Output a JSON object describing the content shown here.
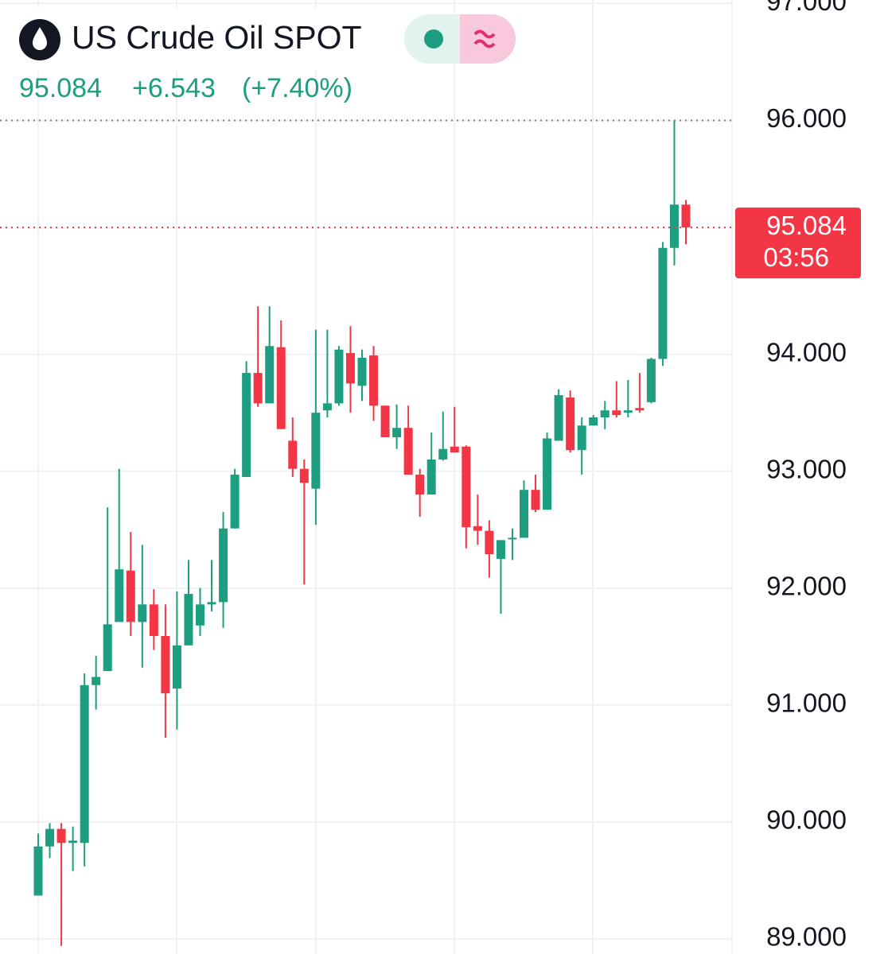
{
  "chart_data": {
    "type": "candlestick",
    "title": "US Crude Oil SPOT",
    "last_price": 95.084,
    "change": "+6.543",
    "change_pct": "(+7.40%)",
    "countdown": "03:56",
    "up_color": "#1e9e80",
    "down_color": "#f23645",
    "grid": true,
    "ylim": [
      88.87,
      97.03
    ],
    "yticks": [
      {
        "value": 89,
        "label": "89.000"
      },
      {
        "value": 90,
        "label": "90.000"
      },
      {
        "value": 91,
        "label": "91.000"
      },
      {
        "value": 92,
        "label": "92.000"
      },
      {
        "value": 93,
        "label": "93.000"
      },
      {
        "value": 94,
        "label": "94.000"
      },
      {
        "value": 96,
        "label": "96.000"
      },
      {
        "value": 97,
        "label": "97.000"
      }
    ],
    "open": [
      89.37,
      89.79,
      89.94,
      89.82,
      89.82,
      91.17,
      91.29,
      91.71,
      92.15,
      91.71,
      91.86,
      91.59,
      91.14,
      91.51,
      91.68,
      91.86,
      91.88,
      92.51,
      92.95,
      93.84,
      93.58,
      94.06,
      93.26,
      93.02,
      92.85,
      93.52,
      93.58,
      94.01,
      93.73,
      93.99,
      93.56,
      93.29,
      93.37,
      92.97,
      92.8,
      93.1,
      93.21,
      93.21,
      92.53,
      92.49,
      92.25,
      92.42,
      92.43,
      92.84,
      92.67,
      93.26,
      93.63,
      93.18,
      93.39,
      93.46,
      93.52,
      93.5,
      93.54,
      93.59,
      93.96,
      94.91,
      95.28
    ],
    "high": [
      89.9,
      89.99,
      89.99,
      89.96,
      91.27,
      91.42,
      92.69,
      93.02,
      92.48,
      92.37,
      91.99,
      91.86,
      91.97,
      92.24,
      92.0,
      92.24,
      92.65,
      93.02,
      93.94,
      94.41,
      94.41,
      94.29,
      93.46,
      93.1,
      94.21,
      94.21,
      94.07,
      94.24,
      94.04,
      94.07,
      93.56,
      93.57,
      93.56,
      93.02,
      93.33,
      93.51,
      93.55,
      93.22,
      92.8,
      92.58,
      92.41,
      92.51,
      92.92,
      92.97,
      93.33,
      93.7,
      93.69,
      93.46,
      93.48,
      93.6,
      93.77,
      93.78,
      93.84,
      93.97,
      94.96,
      96.0,
      95.32
    ],
    "low": [
      89.37,
      89.69,
      88.94,
      89.58,
      89.62,
      90.96,
      91.29,
      91.71,
      91.59,
      91.32,
      91.47,
      90.72,
      90.79,
      91.51,
      91.59,
      91.8,
      91.66,
      92.51,
      92.95,
      93.55,
      93.58,
      93.36,
      92.95,
      92.03,
      92.54,
      93.46,
      93.56,
      93.5,
      93.6,
      93.43,
      93.29,
      93.19,
      92.97,
      92.61,
      92.8,
      93.09,
      93.16,
      92.34,
      92.37,
      92.09,
      91.78,
      92.24,
      92.43,
      92.65,
      92.67,
      93.26,
      93.16,
      92.97,
      93.39,
      93.36,
      93.46,
      93.46,
      93.5,
      93.58,
      93.9,
      94.76,
      94.94
    ],
    "close": [
      89.79,
      89.94,
      89.82,
      89.84,
      91.17,
      91.24,
      91.69,
      92.16,
      91.71,
      91.86,
      91.59,
      91.1,
      91.51,
      91.95,
      91.86,
      91.88,
      92.51,
      92.97,
      93.84,
      93.58,
      94.07,
      93.36,
      93.02,
      92.9,
      93.5,
      93.58,
      94.04,
      93.75,
      93.97,
      93.56,
      93.29,
      93.37,
      92.97,
      92.8,
      93.1,
      93.19,
      93.16,
      92.52,
      92.49,
      92.29,
      92.41,
      92.43,
      92.84,
      92.67,
      93.28,
      93.65,
      93.18,
      93.39,
      93.46,
      93.52,
      93.48,
      93.52,
      93.52,
      93.96,
      94.91,
      95.28,
      95.084
    ]
  }
}
